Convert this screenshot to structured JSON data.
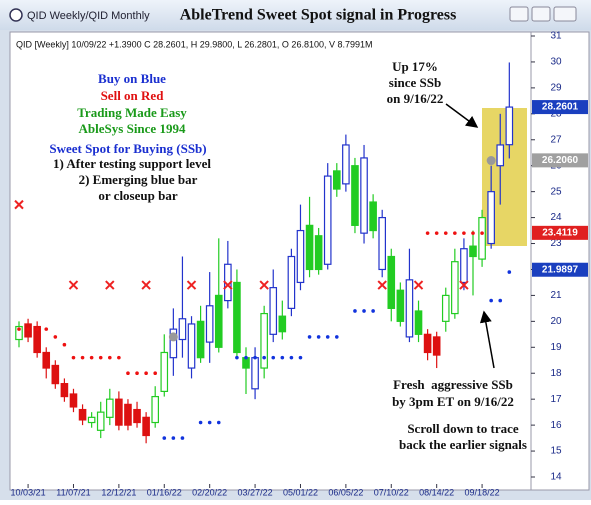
{
  "chart_data": {
    "type": "candlestick",
    "window_title": "QID Weekly/QID Monthly",
    "title": "AbleTrend Sweet Spot signal in Progress",
    "header": "QID [Weekly] 10/09/22 +1.3900 C 28.2601, H 29.9800, L 26.2801, O 26.8100, V 8.7991M",
    "categories": [
      null,
      "10/03/21",
      null,
      null,
      null,
      null,
      "11/07/21",
      null,
      null,
      null,
      null,
      "12/12/21",
      null,
      null,
      null,
      null,
      "01/16/22",
      null,
      null,
      null,
      null,
      "02/20/22",
      null,
      null,
      null,
      null,
      "03/27/22",
      null,
      null,
      null,
      null,
      "05/01/22",
      null,
      null,
      null,
      null,
      "06/05/22",
      null,
      null,
      null,
      null,
      "07/10/22",
      null,
      null,
      null,
      null,
      "08/14/22",
      null,
      null,
      null,
      null,
      "09/18/22",
      null,
      null,
      null
    ],
    "open": [
      19.3,
      19.9,
      19.8,
      18.8,
      18.3,
      17.6,
      17.2,
      16.6,
      16.1,
      15.8,
      16.3,
      17.0,
      16.8,
      16.6,
      16.3,
      16.1,
      17.3,
      18.6,
      19.3,
      18.2,
      20.0,
      19.2,
      21.0,
      20.8,
      21.5,
      18.6,
      17.4,
      18.2,
      19.5,
      20.2,
      20.5,
      21.5,
      23.7,
      23.3,
      22.2,
      25.8,
      25.3,
      26.0,
      23.4,
      24.6,
      22.0,
      22.5,
      21.2,
      19.4,
      20.4,
      19.5,
      19.4,
      20.0,
      20.3,
      21.5,
      22.9,
      22.4,
      23.0,
      26.0,
      26.81
    ],
    "close": [
      19.8,
      19.4,
      18.8,
      18.2,
      17.6,
      17.1,
      16.7,
      16.2,
      16.3,
      16.5,
      17.0,
      16.0,
      16.0,
      16.1,
      15.6,
      17.1,
      18.8,
      19.7,
      20.1,
      19.9,
      18.6,
      20.6,
      19.0,
      22.2,
      18.8,
      18.2,
      18.6,
      20.3,
      21.3,
      19.6,
      22.5,
      23.5,
      22.0,
      22.0,
      25.6,
      25.1,
      26.8,
      23.7,
      26.3,
      23.5,
      24.0,
      20.5,
      20.0,
      21.6,
      19.5,
      18.8,
      18.7,
      21.0,
      22.3,
      22.8,
      22.5,
      24.0,
      25.0,
      26.8,
      28.2601
    ],
    "high": [
      20.0,
      20.1,
      20.0,
      19.0,
      18.5,
      17.8,
      17.4,
      16.8,
      16.5,
      16.9,
      17.4,
      17.3,
      17.0,
      16.9,
      16.5,
      17.5,
      19.5,
      20.5,
      22.5,
      20.2,
      20.6,
      21.9,
      23.2,
      23.1,
      22.0,
      19.0,
      19.0,
      20.6,
      22.0,
      20.8,
      22.8,
      24.5,
      24.8,
      23.6,
      26.1,
      26.1,
      27.2,
      26.3,
      26.8,
      24.9,
      24.3,
      22.8,
      21.5,
      22.8,
      20.8,
      19.7,
      19.6,
      21.3,
      22.8,
      23.2,
      23.5,
      24.3,
      26.0,
      28.0,
      29.98
    ],
    "low": [
      19.0,
      19.2,
      18.6,
      17.8,
      17.4,
      16.9,
      16.5,
      16.0,
      15.9,
      15.5,
      16.0,
      15.8,
      15.8,
      15.9,
      15.3,
      15.9,
      17.1,
      17.9,
      18.6,
      17.8,
      18.4,
      18.4,
      18.8,
      20.5,
      18.6,
      17.2,
      17.0,
      17.8,
      19.2,
      19.3,
      20.2,
      21.2,
      21.7,
      21.8,
      22.0,
      24.8,
      25.0,
      23.4,
      23.0,
      23.2,
      21.7,
      20.0,
      19.8,
      19.2,
      19.2,
      18.5,
      18.2,
      19.6,
      20.1,
      21.2,
      21.0,
      22.1,
      22.8,
      24.5,
      26.2801
    ],
    "candle_colors": [
      "#22cc22",
      "#dd1111",
      "#dd1111",
      "#dd1111",
      "#dd1111",
      "#dd1111",
      "#dd1111",
      "#dd1111",
      "#22cc22",
      "#22cc22",
      "#22cc22",
      "#dd1111",
      "#dd1111",
      "#dd1111",
      "#dd1111",
      "#22cc22",
      "#22cc22",
      "#2233cc",
      "#2233cc",
      "#2233cc",
      "#22cc22",
      "#2233cc",
      "#22cc22",
      "#2233cc",
      "#22cc22",
      "#22cc22",
      "#2233cc",
      "#22cc22",
      "#2233cc",
      "#22cc22",
      "#2233cc",
      "#2233cc",
      "#22cc22",
      "#22cc22",
      "#2233cc",
      "#22cc22",
      "#2233cc",
      "#22cc22",
      "#2233cc",
      "#22cc22",
      "#2233cc",
      "#22cc22",
      "#22cc22",
      "#2233cc",
      "#22cc22",
      "#dd1111",
      "#dd1111",
      "#22cc22",
      "#22cc22",
      "#2233cc",
      "#22cc22",
      "#22cc22",
      "#2233cc",
      "#2233cc",
      "#2233cc"
    ],
    "dots": [
      {
        "color": "#ee1111",
        "x": [
          0,
          1,
          2,
          3,
          4,
          5,
          6,
          7,
          8,
          9,
          10,
          11,
          12,
          13,
          14,
          15,
          45,
          46,
          47,
          48,
          49,
          50,
          51
        ],
        "values": [
          19.7,
          19.7,
          19.7,
          19.7,
          19.4,
          19.1,
          18.6,
          18.6,
          18.6,
          18.6,
          18.6,
          18.6,
          18.0,
          18.0,
          18.0,
          18.0,
          23.4,
          23.4,
          23.4,
          23.4,
          23.4,
          23.4,
          23.4
        ]
      },
      {
        "color": "#1133dd",
        "x": [
          16,
          17,
          18,
          20,
          21,
          22,
          24,
          25,
          26,
          27,
          28,
          29,
          30,
          31,
          32,
          33,
          34,
          35,
          37,
          38,
          39,
          52,
          53,
          54
        ],
        "values": [
          15.5,
          15.5,
          15.5,
          16.1,
          16.1,
          16.1,
          18.6,
          18.6,
          18.6,
          18.6,
          18.6,
          18.6,
          18.6,
          18.6,
          19.4,
          19.4,
          19.4,
          19.4,
          20.4,
          20.4,
          20.4,
          20.8,
          20.8,
          21.9
        ]
      }
    ],
    "sell_marks": {
      "color": "#ee2222",
      "x": [
        0,
        6,
        10,
        14,
        19,
        23,
        27,
        40,
        44,
        49
      ],
      "values": [
        24.5,
        21.4,
        21.4,
        21.4,
        21.4,
        21.4,
        21.4,
        21.4,
        21.4,
        21.4
      ]
    },
    "ssb_marks": {
      "color": "#999999",
      "x": [
        17,
        52
      ],
      "values": [
        19.4,
        26.2
      ]
    },
    "ylim": [
      14,
      31
    ],
    "yticks": [
      14,
      15,
      16,
      17,
      18,
      19,
      20,
      21,
      22,
      23,
      24,
      25,
      26,
      27,
      28,
      29,
      30,
      31
    ],
    "price_tags": {
      "values": [
        28.2601,
        26.206,
        23.4119,
        21.9897
      ],
      "value_labels": [
        "28.2601",
        "26.2060",
        "23.4119",
        "21.9897"
      ],
      "colors": [
        "#1a3fbf",
        "#a0a0a0",
        "#e02020",
        "#1a3fbf"
      ]
    },
    "annotations": [
      {
        "text": "Buy on Blue",
        "color": "#1a2fd0"
      },
      {
        "text": "Sell on Red",
        "color": "#e01010"
      },
      {
        "text": "Trading Made Easy",
        "color": "#1a9a1a"
      },
      {
        "text": "AbleSys Since 1994",
        "color": "#1a9a1a"
      },
      {
        "text": "Sweet Spot for Buying (SSb)",
        "color": "#1a2fd0"
      },
      {
        "text": "1) After testing support level",
        "color": "#111111"
      },
      {
        "text": "2) Emerging blue bar",
        "color": "#111111"
      },
      {
        "text": "or closeup bar",
        "color": "#111111"
      },
      {
        "text": "Up 17%",
        "color": "#111111"
      },
      {
        "text": "since SSb",
        "color": "#111111"
      },
      {
        "text": "on 9/16/22",
        "color": "#111111"
      },
      {
        "text": "Fresh  aggressive SSb",
        "color": "#111111"
      },
      {
        "text": "by 3pm ET on 9/16/22",
        "color": "#111111"
      },
      {
        "text": "Scroll down to trace",
        "color": "#111111"
      },
      {
        "text": "back the earlier signals",
        "color": "#111111"
      }
    ]
  }
}
